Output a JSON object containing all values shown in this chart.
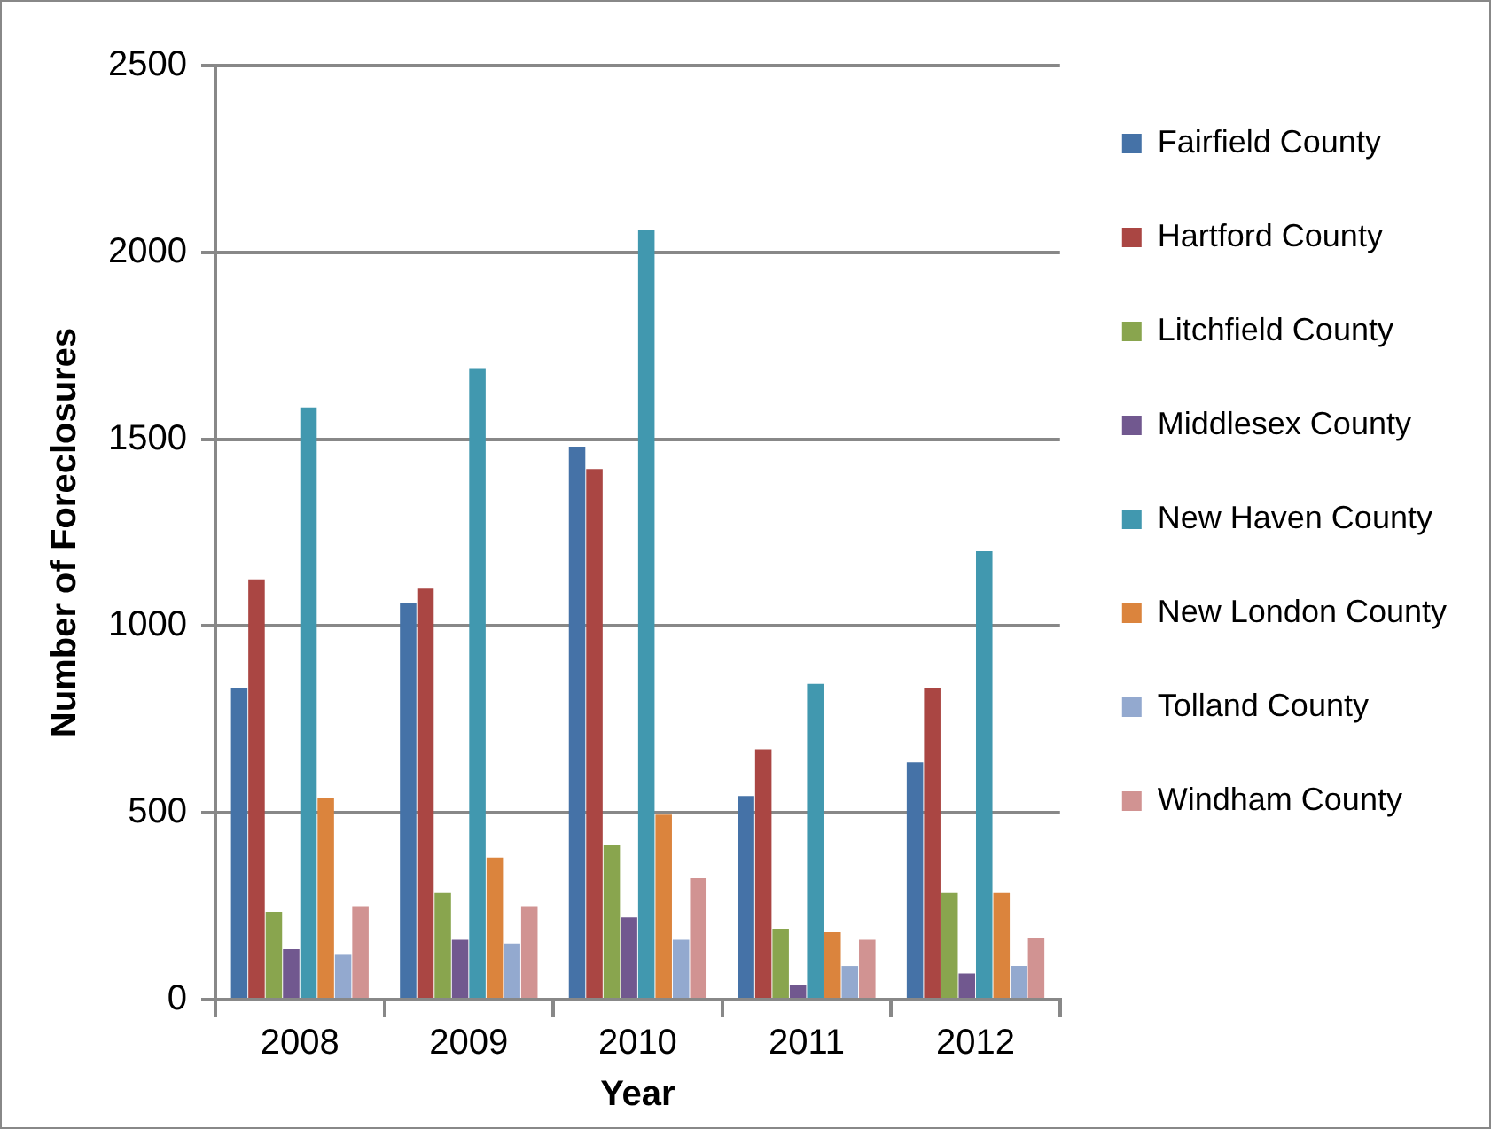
{
  "chart_data": {
    "type": "bar",
    "xlabel": "Year",
    "ylabel": "Number of Foreclosures",
    "categories": [
      "2008",
      "2009",
      "2010",
      "2011",
      "2012"
    ],
    "series": [
      {
        "name": "Fairfield County",
        "color": "#4572a7",
        "values": [
          835,
          1060,
          1480,
          545,
          635
        ]
      },
      {
        "name": "Hartford County",
        "color": "#aa4643",
        "values": [
          1125,
          1100,
          1420,
          670,
          835
        ]
      },
      {
        "name": "Litchfield County",
        "color": "#89a54e",
        "values": [
          235,
          285,
          415,
          190,
          285
        ]
      },
      {
        "name": "Middlesex County",
        "color": "#71588f",
        "values": [
          135,
          160,
          220,
          40,
          70
        ]
      },
      {
        "name": "New Haven County",
        "color": "#4198af",
        "values": [
          1585,
          1690,
          2060,
          845,
          1200
        ]
      },
      {
        "name": "New London County",
        "color": "#db843d",
        "values": [
          540,
          380,
          495,
          180,
          285
        ]
      },
      {
        "name": "Tolland County",
        "color": "#93a9cf",
        "values": [
          120,
          150,
          160,
          90,
          90
        ]
      },
      {
        "name": "Windham County",
        "color": "#d19392",
        "values": [
          250,
          250,
          325,
          160,
          165
        ]
      }
    ],
    "ylim": [
      0,
      2500
    ],
    "yticks": [
      0,
      500,
      1000,
      1500,
      2000,
      2500
    ],
    "grid": "y",
    "legend": "right"
  }
}
